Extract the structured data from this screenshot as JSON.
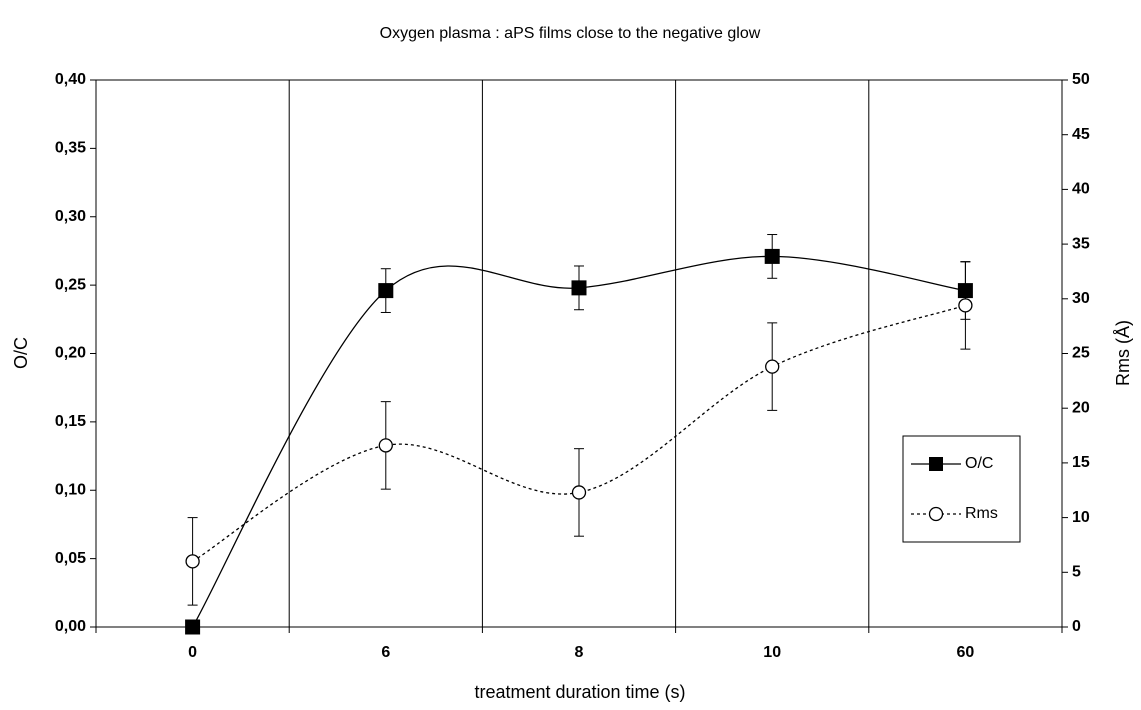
{
  "chart_data": {
    "type": "line",
    "title": "Oxygen plasma : aPS films close to the negative glow",
    "x_label": "treatment duration time (s)",
    "y_label": "O/C",
    "y2_label": "Rms (Å)",
    "categories": [
      "0",
      "6",
      "8",
      "10",
      "60"
    ],
    "ylim": [
      0,
      0.4
    ],
    "yticks": [
      {
        "value": 0,
        "label": "0,00"
      },
      {
        "value": 0.05,
        "label": "0,05"
      },
      {
        "value": 0.1,
        "label": "0,10"
      },
      {
        "value": 0.15,
        "label": "0,15"
      },
      {
        "value": 0.2,
        "label": "0,20"
      },
      {
        "value": 0.25,
        "label": "0,25"
      },
      {
        "value": 0.3,
        "label": "0,30"
      },
      {
        "value": 0.35,
        "label": "0,35"
      },
      {
        "value": 0.4,
        "label": "0,40"
      }
    ],
    "y2lim": [
      0,
      50
    ],
    "y2ticks": [
      0,
      5,
      10,
      15,
      20,
      25,
      30,
      35,
      40,
      45,
      50
    ],
    "grid": "x",
    "smooth": true,
    "legend": "right",
    "series": [
      {
        "name": "O/C",
        "color": "#000000",
        "marker": "square",
        "line_style": "solid",
        "values": [
          0,
          0.246,
          0.248,
          0.271,
          0.246
        ],
        "errors": [
          null,
          0.016,
          0.016,
          0.016,
          0.021
        ]
      },
      {
        "name": "Rms",
        "color": "#000000",
        "marker": "circle",
        "line_style": "dotted",
        "axis": "y2",
        "values": [
          6,
          16.6,
          12.3,
          23.8,
          29.4
        ],
        "errors": [
          4,
          4,
          4,
          4,
          4
        ]
      }
    ]
  }
}
